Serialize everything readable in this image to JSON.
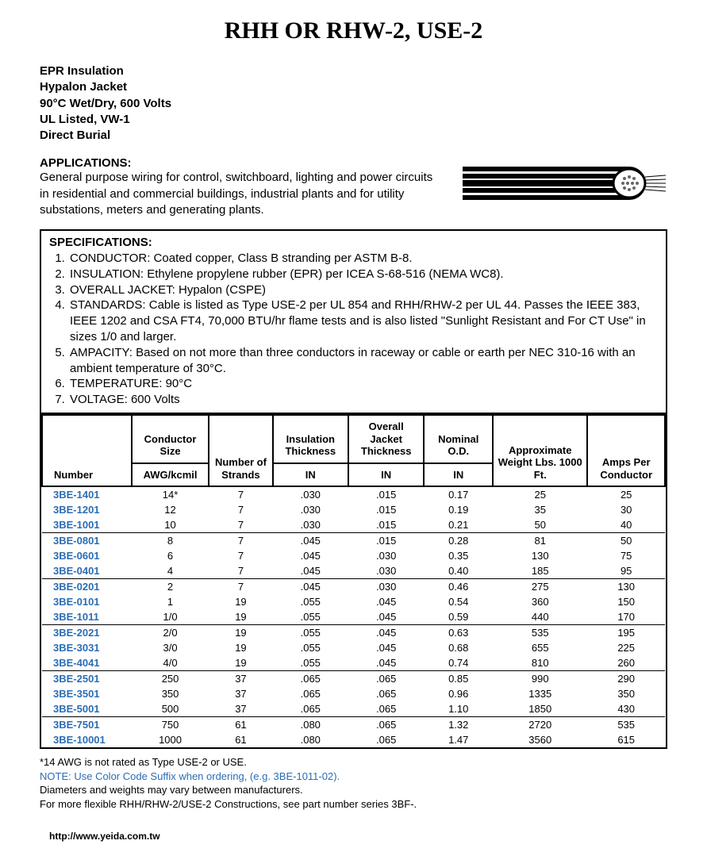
{
  "title": "RHH OR RHW-2, USE-2",
  "features": [
    "EPR Insulation",
    "Hypalon Jacket",
    "90°C Wet/Dry, 600 Volts",
    "UL Listed, VW-1",
    "Direct Burial"
  ],
  "applications": {
    "heading": "APPLICATIONS:",
    "body": "General purpose wiring for control, switchboard, lighting and power circuits in residential and commercial buildings, industrial plants and for utility substations, meters and generating plants."
  },
  "specifications": {
    "heading": "SPECIFICATIONS:",
    "items": [
      "CONDUCTOR: Coated copper, Class B stranding per ASTM B-8.",
      "INSULATION: Ethylene propylene rubber (EPR) per ICEA S-68-516 (NEMA WC8).",
      "OVERALL JACKET: Hypalon (CSPE)",
      "STANDARDS: Cable is listed as Type USE-2 per UL 854 and RHH/RHW-2 per UL 44. Passes the IEEE 383, IEEE 1202 and CSA FT4, 70,000 BTU/hr flame tests and is also listed \"Sunlight Resistant and For CT Use\" in sizes 1/0 and larger.",
      "AMPACITY: Based on not more than three conductors in raceway or cable or earth per NEC 310-16 with an ambient temperature of 30°C.",
      "TEMPERATURE: 90°C",
      "VOLTAGE: 600 Volts"
    ]
  },
  "table": {
    "columns": {
      "number": "Number",
      "cond_size_top": "Conductor Size",
      "cond_size_sub": "AWG/kcmil",
      "strands": "Number of Strands",
      "ins_thk_top": "Insulation Thickness",
      "ins_thk_sub": "IN",
      "jkt_thk_top": "Overall Jacket Thickness",
      "jkt_thk_sub": "IN",
      "od_top": "Nominal O.D.",
      "od_sub": "IN",
      "weight": "Approximate Weight Lbs. 1000 Ft.",
      "amps": "Amps Per Conductor"
    },
    "groups": [
      [
        {
          "num": "3BE-1401",
          "size": "14*",
          "strands": "7",
          "ins": ".030",
          "jkt": ".015",
          "od": "0.17",
          "wt": "25",
          "amps": "25"
        },
        {
          "num": "3BE-1201",
          "size": "12",
          "strands": "7",
          "ins": ".030",
          "jkt": ".015",
          "od": "0.19",
          "wt": "35",
          "amps": "30"
        },
        {
          "num": "3BE-1001",
          "size": "10",
          "strands": "7",
          "ins": ".030",
          "jkt": ".015",
          "od": "0.21",
          "wt": "50",
          "amps": "40"
        }
      ],
      [
        {
          "num": "3BE-0801",
          "size": "8",
          "strands": "7",
          "ins": ".045",
          "jkt": ".015",
          "od": "0.28",
          "wt": "81",
          "amps": "50"
        },
        {
          "num": "3BE-0601",
          "size": "6",
          "strands": "7",
          "ins": ".045",
          "jkt": ".030",
          "od": "0.35",
          "wt": "130",
          "amps": "75"
        },
        {
          "num": "3BE-0401",
          "size": "4",
          "strands": "7",
          "ins": ".045",
          "jkt": ".030",
          "od": "0.40",
          "wt": "185",
          "amps": "95"
        }
      ],
      [
        {
          "num": "3BE-0201",
          "size": "2",
          "strands": "7",
          "ins": ".045",
          "jkt": ".030",
          "od": "0.46",
          "wt": "275",
          "amps": "130"
        },
        {
          "num": "3BE-0101",
          "size": "1",
          "strands": "19",
          "ins": ".055",
          "jkt": ".045",
          "od": "0.54",
          "wt": "360",
          "amps": "150"
        },
        {
          "num": "3BE-1011",
          "size": "1/0",
          "strands": "19",
          "ins": ".055",
          "jkt": ".045",
          "od": "0.59",
          "wt": "440",
          "amps": "170"
        }
      ],
      [
        {
          "num": "3BE-2021",
          "size": "2/0",
          "strands": "19",
          "ins": ".055",
          "jkt": ".045",
          "od": "0.63",
          "wt": "535",
          "amps": "195"
        },
        {
          "num": "3BE-3031",
          "size": "3/0",
          "strands": "19",
          "ins": ".055",
          "jkt": ".045",
          "od": "0.68",
          "wt": "655",
          "amps": "225"
        },
        {
          "num": "3BE-4041",
          "size": "4/0",
          "strands": "19",
          "ins": ".055",
          "jkt": ".045",
          "od": "0.74",
          "wt": "810",
          "amps": "260"
        }
      ],
      [
        {
          "num": "3BE-2501",
          "size": "250",
          "strands": "37",
          "ins": ".065",
          "jkt": ".065",
          "od": "0.85",
          "wt": "990",
          "amps": "290"
        },
        {
          "num": "3BE-3501",
          "size": "350",
          "strands": "37",
          "ins": ".065",
          "jkt": ".065",
          "od": "0.96",
          "wt": "1335",
          "amps": "350"
        },
        {
          "num": "3BE-5001",
          "size": "500",
          "strands": "37",
          "ins": ".065",
          "jkt": ".065",
          "od": "1.10",
          "wt": "1850",
          "amps": "430"
        }
      ],
      [
        {
          "num": "3BE-7501",
          "size": "750",
          "strands": "61",
          "ins": ".080",
          "jkt": ".065",
          "od": "1.32",
          "wt": "2720",
          "amps": "535"
        },
        {
          "num": "3BE-10001",
          "size": "1000",
          "strands": "61",
          "ins": ".080",
          "jkt": ".065",
          "od": "1.47",
          "wt": "3560",
          "amps": "615"
        }
      ]
    ]
  },
  "footnotes": {
    "line1": "*14 AWG is not rated as Type USE-2 or USE.",
    "line2": "NOTE: Use Color Code Suffix when ordering, (e.g. 3BE-1011-02).",
    "line3": "Diameters and weights may vary between manufacturers.",
    "line4": "For more flexible RHH/RHW-2/USE-2 Constructions, see part number series 3BF-."
  },
  "source": "http://www.yeida.com.tw",
  "colors": {
    "link_blue": "#2a6db5",
    "text": "#000000",
    "background": "#ffffff"
  }
}
